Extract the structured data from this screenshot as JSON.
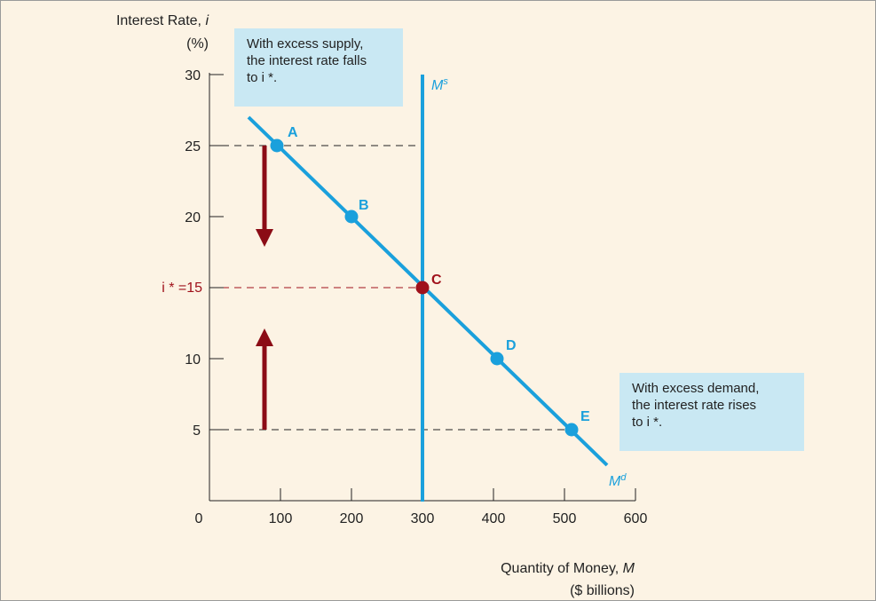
{
  "chart_data": {
    "type": "line",
    "y_axis_label": "Interest Rate,",
    "y_axis_symbol": "i",
    "y_axis_unit": "(%)",
    "x_axis_label": "Quantity of Money,",
    "x_axis_symbol": "M",
    "x_axis_unit": "($ billions)",
    "xlim": [
      0,
      600
    ],
    "ylim": [
      0,
      30
    ],
    "x_ticks": [
      0,
      100,
      200,
      300,
      400,
      500,
      600
    ],
    "y_ticks": [
      5,
      10,
      15,
      20,
      25,
      30
    ],
    "y_tick_labels": [
      "5",
      "10",
      "",
      "20",
      "25",
      "30"
    ],
    "equilibrium_label": "i * =15",
    "money_demand": {
      "label": "M",
      "label_superscript": "d",
      "start": [
        55,
        27
      ],
      "end": [
        560,
        2.5
      ],
      "points": [
        {
          "name": "A",
          "x": 95,
          "y": 25
        },
        {
          "name": "B",
          "x": 200,
          "y": 20
        },
        {
          "name": "C",
          "x": 300,
          "y": 15
        },
        {
          "name": "D",
          "x": 405,
          "y": 10
        },
        {
          "name": "E",
          "x": 510,
          "y": 5
        }
      ]
    },
    "money_supply": {
      "label": "M",
      "label_superscript": "s",
      "x": 300
    },
    "guide_lines_y": [
      25,
      15,
      5
    ],
    "arrows": [
      {
        "direction": "down",
        "x": 50,
        "from": 25,
        "to": 18.5
      },
      {
        "direction": "up",
        "x": 50,
        "from": 5,
        "to": 11.5
      }
    ],
    "annotations": [
      {
        "id": "excess-supply",
        "lines": [
          "With excess supply,",
          "the interest rate falls",
          "to i *."
        ]
      },
      {
        "id": "excess-demand",
        "lines": [
          "With excess demand,",
          "the interest rate rises",
          "to i *."
        ]
      }
    ],
    "colors": {
      "curve": "#1aa0dc",
      "equilibrium": "#a0111b",
      "arrow": "#8b0c16",
      "note_box": "#c9e8f3",
      "background": "#fcf3e4"
    }
  }
}
